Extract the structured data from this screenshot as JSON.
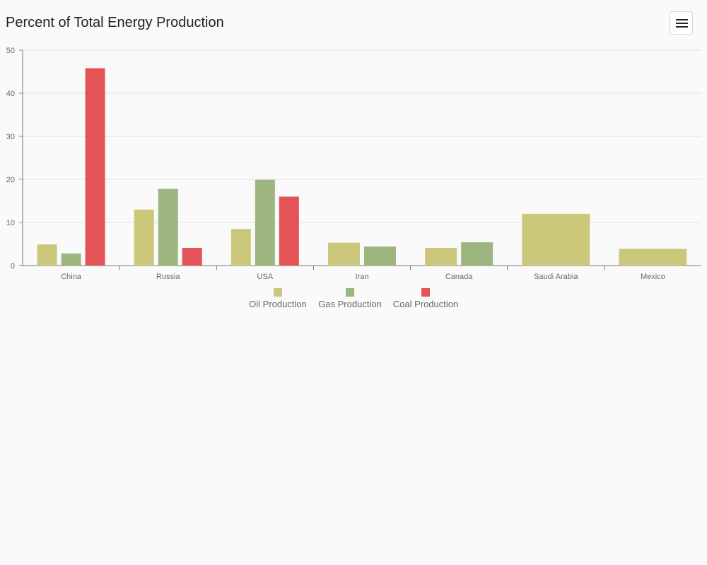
{
  "title": "Percent of Total Energy Production",
  "menu": {
    "icon": "hamburger-menu-icon"
  },
  "chart_data": {
    "type": "bar",
    "title": "Percent of Total Energy Production",
    "xlabel": "",
    "ylabel": "",
    "ylim": [
      0,
      50
    ],
    "yticks": [
      0,
      10,
      20,
      30,
      40,
      50
    ],
    "grid": true,
    "legend_position": "bottom-center",
    "categories": [
      "China",
      "Russia",
      "USA",
      "Iran",
      "Canada",
      "Saudi Arabia",
      "Mexico"
    ],
    "series": [
      {
        "name": "Oil Production",
        "color": "#cbc87c",
        "values": [
          4.9,
          13,
          8.5,
          5.3,
          4.1,
          12,
          3.9
        ]
      },
      {
        "name": "Gas Production",
        "color": "#9db680",
        "values": [
          2.8,
          17.8,
          19.9,
          4.4,
          5.4,
          null,
          null
        ]
      },
      {
        "name": "Coal Production",
        "color": "#e45355",
        "values": [
          45.8,
          4.1,
          16,
          null,
          null,
          null,
          null
        ]
      }
    ]
  }
}
